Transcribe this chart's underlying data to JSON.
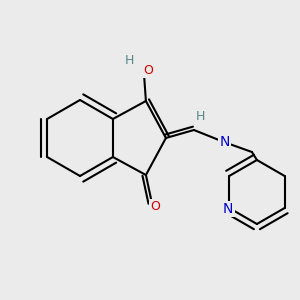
{
  "background_color": "#ebebeb",
  "bond_color": "#000000",
  "bond_width": 1.5,
  "o_color": "#cc0000",
  "n_color": "#0000cc",
  "h_color": "#558888",
  "atoms": {
    "O_top": {
      "label": "O",
      "color": "#cc0000"
    },
    "H_top": {
      "label": "H",
      "color": "#558888"
    },
    "O_bottom": {
      "label": "O",
      "color": "#cc0000"
    },
    "N_link": {
      "label": "N",
      "color": "#0000cc"
    },
    "H_link": {
      "label": "H",
      "color": "#558888"
    },
    "N_py": {
      "label": "N",
      "color": "#0000cc"
    }
  }
}
